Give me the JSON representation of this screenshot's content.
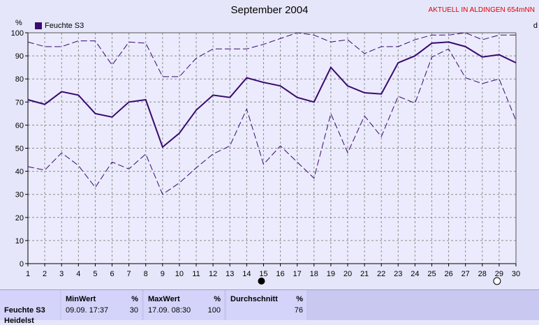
{
  "header": {
    "title": "September 2004",
    "station": "AKTUELL IN ALDINGEN 654mNN",
    "right_label": "d"
  },
  "chart_data": {
    "type": "line",
    "x": [
      1,
      2,
      3,
      4,
      5,
      6,
      7,
      8,
      9,
      10,
      11,
      12,
      13,
      14,
      15,
      16,
      17,
      18,
      19,
      20,
      21,
      22,
      23,
      24,
      25,
      26,
      27,
      28,
      29,
      30
    ],
    "ylim": [
      0,
      100
    ],
    "xlim": [
      1,
      30
    ],
    "yticks": [
      0,
      10,
      20,
      30,
      40,
      50,
      60,
      70,
      80,
      90,
      100
    ],
    "ylabel": "%",
    "grid": true,
    "legend_position": "top-left",
    "series": [
      {
        "name": "Feuchte S3",
        "role": "mean",
        "color": "#3a0a6e",
        "values": [
          71,
          69,
          74.5,
          73,
          65,
          63.5,
          70,
          71,
          50.5,
          56.5,
          66.5,
          73,
          72,
          80.5,
          78.5,
          77,
          72,
          70,
          85,
          77,
          74,
          73.5,
          87,
          90,
          95.5,
          96,
          94,
          89.5,
          90.5,
          87
        ]
      },
      {
        "role": "max",
        "color": "#3a0a6e",
        "values": [
          96,
          94,
          94,
          96.5,
          96.5,
          86,
          96,
          95.5,
          81,
          81,
          89,
          93,
          93,
          93,
          95,
          97.5,
          100,
          99,
          96,
          97,
          91,
          94,
          94,
          97,
          99,
          99,
          100,
          97,
          99,
          99
        ]
      },
      {
        "role": "min",
        "color": "#3a0a6e",
        "values": [
          42,
          40.5,
          48,
          42.5,
          33,
          44,
          41,
          47.5,
          30,
          35,
          41.5,
          47.5,
          51,
          67,
          43,
          51,
          44,
          37,
          65,
          48,
          64,
          55,
          72.5,
          69.5,
          89.5,
          93,
          80.5,
          78,
          80,
          62
        ]
      }
    ],
    "markers": [
      {
        "day": 15,
        "kind": "full-moon-filled"
      },
      {
        "day": 29,
        "kind": "new-moon-empty"
      }
    ]
  },
  "summary": {
    "sensor": "Feuchte S3",
    "sensor2": "Heidelst",
    "min": {
      "label": "MinWert",
      "unit": "%",
      "date": "09.09.  17:37",
      "value": "30"
    },
    "max": {
      "label": "MaxWert",
      "unit": "%",
      "date": "17.09.  08:30",
      "value": "100"
    },
    "avg": {
      "label": "Durchschnitt",
      "unit": "%",
      "value": "76"
    }
  }
}
